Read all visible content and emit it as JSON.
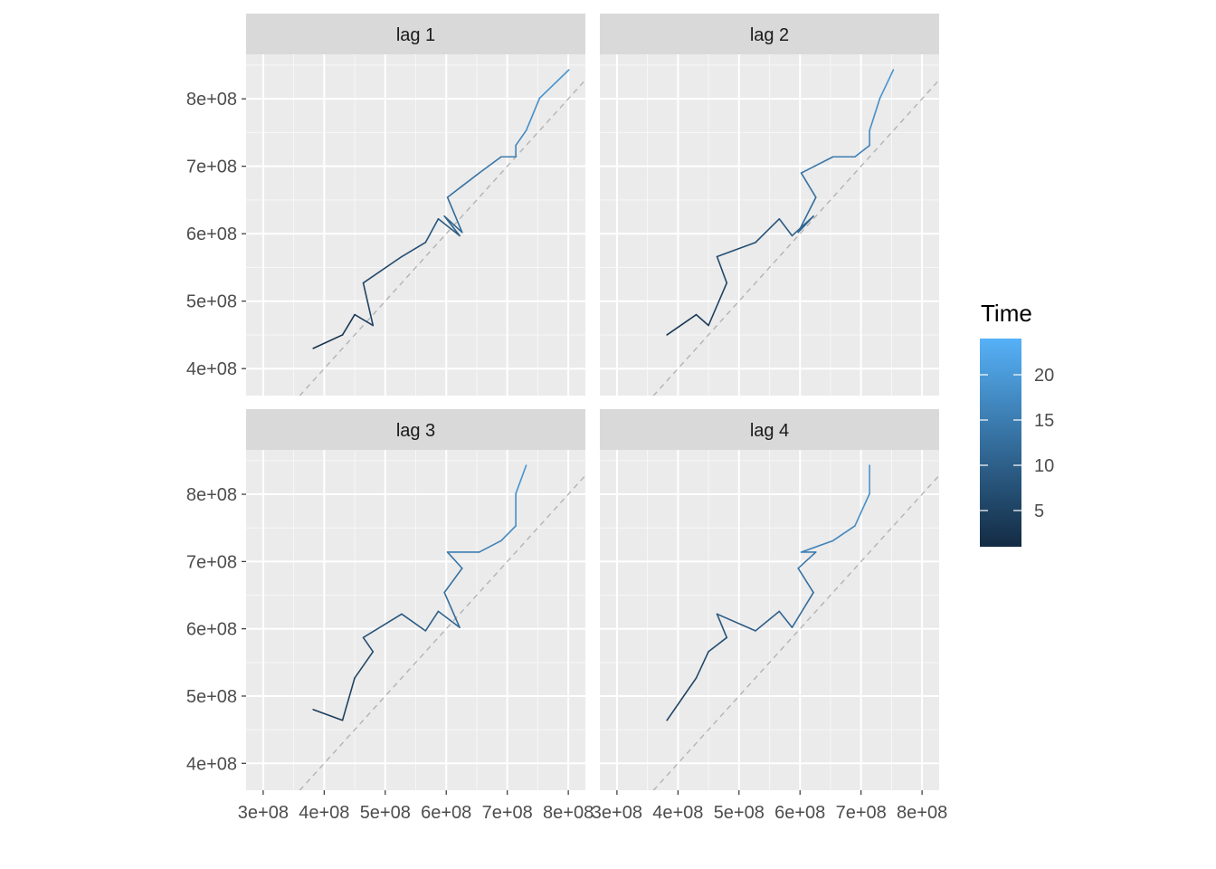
{
  "chart_data": {
    "type": "line",
    "facets": [
      "lag 1",
      "lag 2",
      "lag 3",
      "lag 4"
    ],
    "x_ticks": [
      300000000,
      400000000,
      500000000,
      600000000,
      700000000,
      800000000
    ],
    "x_tick_labels": [
      "3e+08",
      "4e+08",
      "5e+08",
      "6e+08",
      "7e+08",
      "8e+08"
    ],
    "y_ticks": [
      400000000,
      500000000,
      600000000,
      700000000,
      800000000
    ],
    "y_tick_labels": [
      "4e+08",
      "5e+08",
      "6e+08",
      "7e+08",
      "8e+08"
    ],
    "xlim": [
      272000000,
      828000000
    ],
    "ylim": [
      360000000,
      866000000
    ],
    "reference_line": "y = x (dashed)",
    "legend": {
      "title": "Time",
      "position": "right",
      "ticks": [
        5,
        10,
        15,
        20
      ],
      "range": [
        1,
        24
      ],
      "color_low": "#132B43",
      "color_high": "#56B1F7"
    },
    "series_values": [
      382000000,
      430000000,
      450000000,
      480000000,
      464000000,
      527000000,
      566000000,
      587000000,
      622000000,
      597000000,
      626000000,
      602000000,
      654000000,
      690000000,
      714000000,
      714000000,
      731000000,
      753000000,
      801000000,
      843000000
    ]
  }
}
